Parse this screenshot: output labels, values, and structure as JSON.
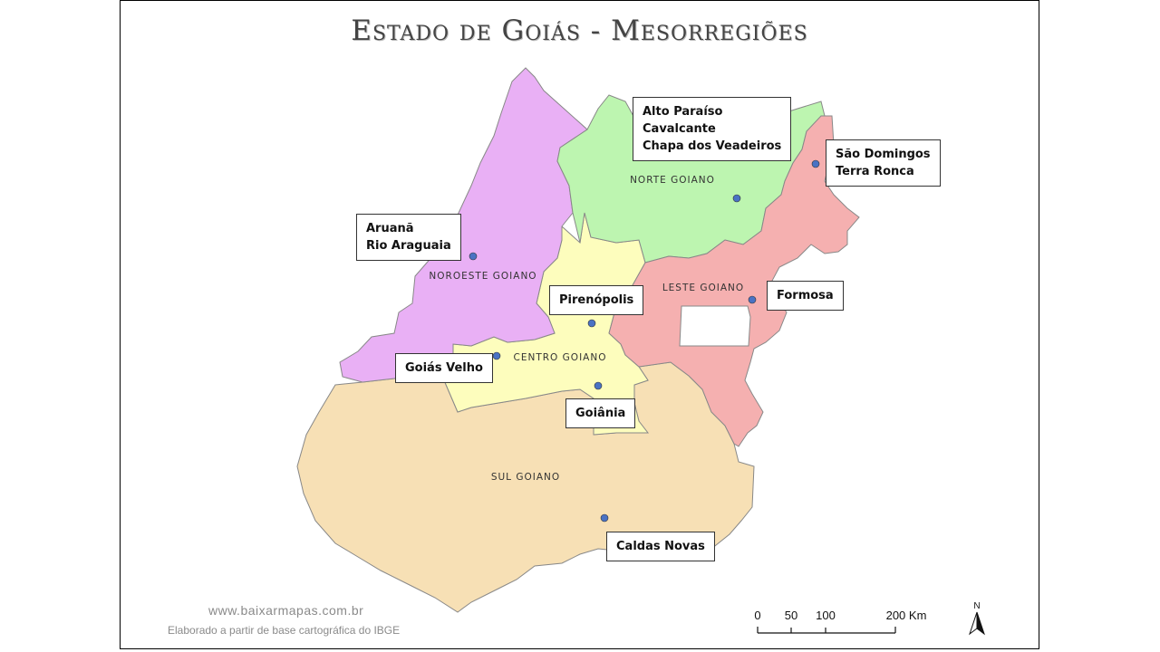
{
  "title": "Estado de Goiás - Mesorregiões",
  "regions": [
    {
      "name": "NORTE GOIANO",
      "color": "#bdf5b0"
    },
    {
      "name": "NOROESTE GOIANO",
      "color": "#e9b0f5"
    },
    {
      "name": "LESTE GOIANO",
      "color": "#f5b0b0"
    },
    {
      "name": "CENTRO GOIANO",
      "color": "#fdfdbd"
    },
    {
      "name": "SUL GOIANO",
      "color": "#f7e0b5"
    }
  ],
  "callouts": {
    "alto_paraiso": [
      "Alto Paraíso",
      "Cavalcante",
      "Chapa dos Veadeiros"
    ],
    "sao_domingos": [
      "São Domingos",
      "Terra Ronca"
    ],
    "aruana": [
      "Aruanã",
      "Rio Araguaia"
    ],
    "pirenopolis": [
      "Pirenópolis"
    ],
    "formosa": [
      "Formosa"
    ],
    "goias_velho": [
      "Goiás Velho"
    ],
    "goiania": [
      "Goiânia"
    ],
    "caldas_novas": [
      "Caldas Novas"
    ]
  },
  "point_color": "#4a72c4",
  "footer": {
    "site": "www.baixarmapas.com.br",
    "credit": "Elaborado a partir de base cartográfica do IBGE"
  },
  "scale": {
    "ticks": [
      "0",
      "50",
      "100",
      "200 Km"
    ]
  },
  "north": "N"
}
